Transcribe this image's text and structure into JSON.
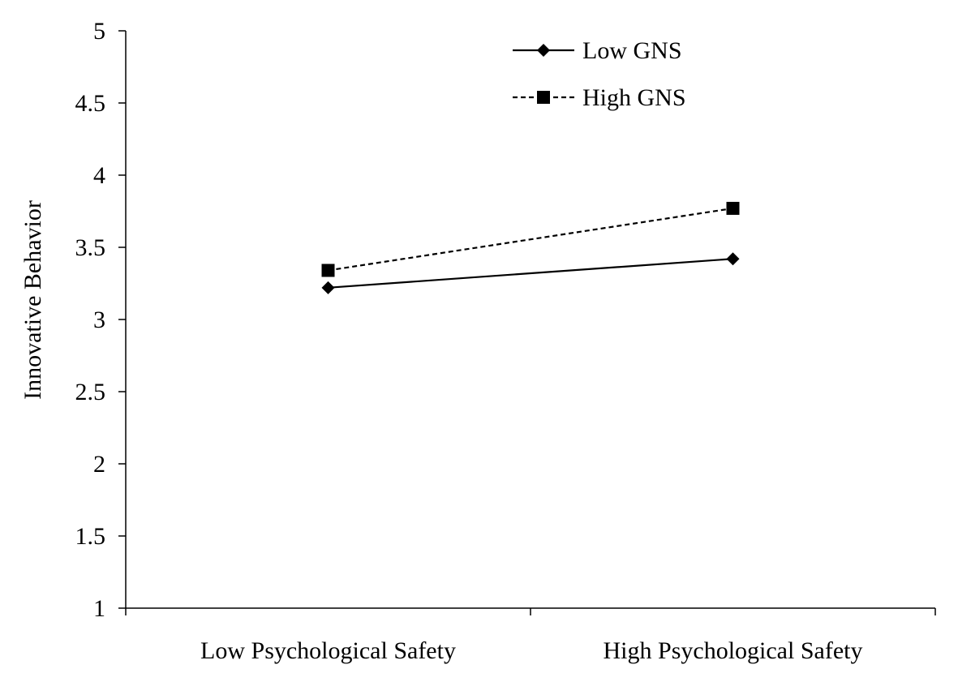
{
  "chart_data": {
    "type": "line",
    "title": "",
    "xlabel": "",
    "ylabel": "Innovative Behavior",
    "categories": [
      "Low Psychological Safety",
      "High Psychological Safety"
    ],
    "ylim": [
      1,
      5
    ],
    "yticks": [
      "1",
      "1.5",
      "2",
      "2.5",
      "3",
      "3.5",
      "4",
      "4.5",
      "5"
    ],
    "grid": false,
    "legend_position": "top",
    "series": [
      {
        "name": "Low GNS",
        "values": [
          3.22,
          3.42
        ],
        "line_style": "solid",
        "marker": "diamond",
        "color": "#000000"
      },
      {
        "name": "High GNS",
        "values": [
          3.34,
          3.77
        ],
        "line_style": "dashed",
        "marker": "square",
        "color": "#000000"
      }
    ]
  }
}
